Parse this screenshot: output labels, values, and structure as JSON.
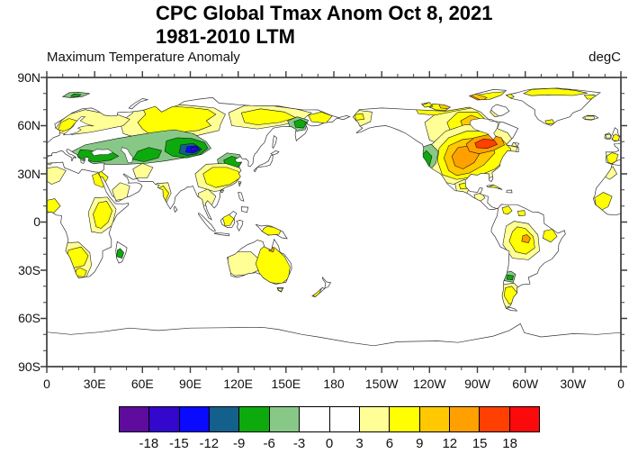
{
  "header": {
    "title_line1": "CPC Global Tmax Anom Oct 8, 2021",
    "title_line2": "1981-2010 LTM",
    "subtitle_left": "Maximum Temperature Anomaly",
    "units_label": "degC"
  },
  "axes": {
    "lat_labels": [
      "90N",
      "60N",
      "30N",
      "0",
      "30S",
      "60S",
      "90S"
    ],
    "lon_labels": [
      "0",
      "30E",
      "60E",
      "90E",
      "120E",
      "150E",
      "180",
      "150W",
      "120W",
      "90W",
      "60W",
      "30W",
      "0"
    ]
  },
  "colorbar": {
    "tick_labels": [
      "-18",
      "-15",
      "-12",
      "-9",
      "-6",
      "-3",
      "0",
      "3",
      "6",
      "9",
      "12",
      "15",
      "18"
    ],
    "colors": [
      "#5e0b9e",
      "#3307cc",
      "#0a0aff",
      "#14608c",
      "#0caa0c",
      "#87c887",
      "#ffffff",
      "#ffffff",
      "#ffff96",
      "#ffff00",
      "#ffc800",
      "#ffa000",
      "#ff4000",
      "#fa0a0a"
    ]
  }
}
